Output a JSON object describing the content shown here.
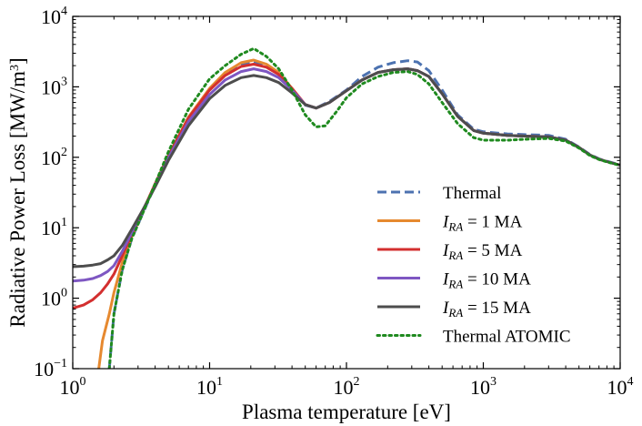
{
  "chart_data": {
    "type": "line",
    "title": "",
    "xlabel": "Plasma temperature [eV]",
    "ylabel_main": "Radiative Power Loss [MW/m",
    "ylabel_sup": "3",
    "ylabel_close": "]",
    "xscale": "log",
    "yscale": "log",
    "xlim": [
      1,
      10000
    ],
    "ylim": [
      0.1,
      10000
    ],
    "x_ticks": [
      {
        "base": "10",
        "exp": "0",
        "value": 1
      },
      {
        "base": "10",
        "exp": "1",
        "value": 10
      },
      {
        "base": "10",
        "exp": "2",
        "value": 100
      },
      {
        "base": "10",
        "exp": "3",
        "value": 1000
      },
      {
        "base": "10",
        "exp": "4",
        "value": 10000
      }
    ],
    "y_ticks": [
      {
        "base": "10",
        "exp": "−1",
        "value": 0.1
      },
      {
        "base": "10",
        "exp": "0",
        "value": 1
      },
      {
        "base": "10",
        "exp": "1",
        "value": 10
      },
      {
        "base": "10",
        "exp": "2",
        "value": 100
      },
      {
        "base": "10",
        "exp": "3",
        "value": 1000
      },
      {
        "base": "10",
        "exp": "4",
        "value": 10000
      }
    ],
    "legend_position": "lower-right",
    "series": [
      {
        "name": "Thermal",
        "label_main": "Thermal",
        "label_sub": "",
        "label_rest": "",
        "color": "#4c72b0",
        "dash": "dashed",
        "x": [
          1.85,
          2.0,
          2.3,
          2.7,
          3.2,
          4,
          5,
          7,
          10,
          13,
          17,
          21,
          26,
          32,
          40,
          50,
          60,
          75,
          100,
          130,
          170,
          220,
          280,
          330,
          400,
          500,
          650,
          850,
          1000,
          1500,
          2000,
          3000,
          4000,
          5000,
          6000,
          7000,
          8000,
          10000
        ],
        "y": [
          0.1,
          0.6,
          2.5,
          7,
          15,
          40,
          100,
          350,
          900,
          1500,
          2100,
          2300,
          2000,
          1500,
          900,
          550,
          500,
          620,
          900,
          1400,
          1900,
          2200,
          2350,
          2250,
          1700,
          900,
          400,
          250,
          230,
          215,
          210,
          205,
          180,
          140,
          110,
          95,
          88,
          78
        ]
      },
      {
        "name": "I_RA = 1 MA",
        "label_main": "I",
        "label_sub": "RA",
        "label_rest": " = 1 MA",
        "color": "#e6892f",
        "dash": "solid",
        "x": [
          1.55,
          1.65,
          1.85,
          2.0,
          2.3,
          2.7,
          3.2,
          4,
          5,
          7,
          10,
          13,
          17,
          21,
          26,
          32,
          40,
          50,
          60,
          75,
          100,
          130,
          170,
          220,
          280,
          330,
          400,
          500,
          650,
          850,
          1000,
          1500,
          2000,
          3000,
          4000,
          5000,
          6000,
          7000,
          8000,
          10000
        ],
        "y": [
          0.1,
          0.25,
          0.6,
          1.2,
          3.2,
          7.5,
          16,
          42,
          105,
          370,
          950,
          1600,
          2200,
          2400,
          2100,
          1600,
          950,
          560,
          500,
          600,
          880,
          1250,
          1600,
          1750,
          1800,
          1700,
          1400,
          800,
          380,
          240,
          220,
          205,
          200,
          195,
          175,
          138,
          108,
          94,
          87,
          77
        ]
      },
      {
        "name": "I_RA = 5 MA",
        "label_main": "I",
        "label_sub": "RA",
        "label_rest": " = 5 MA",
        "color": "#d32f2f",
        "dash": "solid",
        "x": [
          1.0,
          1.2,
          1.4,
          1.6,
          1.8,
          2.0,
          2.3,
          2.7,
          3.2,
          4,
          5,
          7,
          10,
          13,
          17,
          21,
          26,
          32,
          40,
          50,
          60,
          75,
          100,
          130,
          170,
          220,
          280,
          330,
          400,
          500,
          650,
          850,
          1000,
          1500,
          2000,
          3000,
          4000,
          5000,
          6000,
          7000,
          8000,
          10000
        ],
        "y": [
          0.72,
          0.8,
          0.95,
          1.2,
          1.6,
          2.2,
          4.0,
          8.0,
          16,
          42,
          105,
          360,
          900,
          1450,
          1950,
          2100,
          1900,
          1500,
          950,
          560,
          500,
          600,
          880,
          1250,
          1600,
          1750,
          1800,
          1700,
          1400,
          800,
          380,
          240,
          220,
          205,
          200,
          195,
          175,
          138,
          108,
          94,
          87,
          77
        ]
      },
      {
        "name": "I_RA = 10 MA",
        "label_main": "I",
        "label_sub": "RA",
        "label_rest": " = 10 MA",
        "color": "#7e57c2",
        "dash": "solid",
        "x": [
          1.0,
          1.2,
          1.4,
          1.6,
          1.8,
          2.0,
          2.3,
          2.7,
          3.2,
          4,
          5,
          7,
          10,
          13,
          17,
          21,
          26,
          32,
          40,
          50,
          60,
          75,
          100,
          130,
          170,
          220,
          280,
          330,
          400,
          500,
          650,
          850,
          1000,
          1500,
          2000,
          3000,
          4000,
          5000,
          6000,
          7000,
          8000,
          10000
        ],
        "y": [
          1.75,
          1.8,
          1.9,
          2.1,
          2.4,
          2.9,
          4.6,
          8.5,
          16,
          40,
          98,
          320,
          780,
          1250,
          1650,
          1800,
          1650,
          1350,
          900,
          560,
          500,
          600,
          880,
          1250,
          1600,
          1750,
          1800,
          1700,
          1400,
          800,
          380,
          240,
          220,
          205,
          200,
          195,
          175,
          138,
          108,
          94,
          87,
          77
        ]
      },
      {
        "name": "I_RA = 15 MA",
        "label_main": "I",
        "label_sub": "RA",
        "label_rest": " = 15 MA",
        "color": "#4d4d4d",
        "dash": "solid",
        "x": [
          1.0,
          1.2,
          1.4,
          1.6,
          1.8,
          2.0,
          2.3,
          2.7,
          3.2,
          4,
          5,
          7,
          10,
          13,
          17,
          21,
          26,
          32,
          40,
          50,
          60,
          75,
          100,
          130,
          170,
          220,
          280,
          330,
          400,
          500,
          650,
          850,
          1000,
          1500,
          2000,
          3000,
          4000,
          5000,
          6000,
          7000,
          8000,
          10000
        ],
        "y": [
          2.8,
          2.85,
          2.95,
          3.1,
          3.5,
          4.0,
          5.6,
          9.5,
          17,
          38,
          90,
          280,
          680,
          1050,
          1350,
          1450,
          1350,
          1150,
          820,
          560,
          500,
          600,
          880,
          1250,
          1600,
          1750,
          1800,
          1700,
          1400,
          800,
          380,
          240,
          220,
          205,
          200,
          195,
          175,
          138,
          108,
          94,
          87,
          77
        ]
      },
      {
        "name": "Thermal ATOMIC",
        "label_main": "Thermal ATOMIC",
        "label_sub": "",
        "label_rest": "",
        "color": "#1f8a1f",
        "dash": "dotted",
        "x": [
          1.85,
          2.0,
          2.3,
          2.7,
          3.2,
          4,
          5,
          7,
          10,
          13,
          17,
          21,
          26,
          32,
          40,
          50,
          60,
          70,
          85,
          100,
          130,
          170,
          220,
          280,
          330,
          400,
          500,
          650,
          850,
          1000,
          1500,
          2000,
          3000,
          4000,
          5000,
          6000,
          7000,
          8000,
          10000
        ],
        "y": [
          0.1,
          0.6,
          2.5,
          7,
          15,
          42,
          120,
          480,
          1300,
          2000,
          2900,
          3500,
          2700,
          1800,
          900,
          400,
          270,
          280,
          450,
          700,
          1100,
          1400,
          1600,
          1650,
          1500,
          1100,
          600,
          300,
          190,
          175,
          175,
          180,
          185,
          170,
          135,
          106,
          93,
          86,
          77
        ]
      }
    ]
  }
}
